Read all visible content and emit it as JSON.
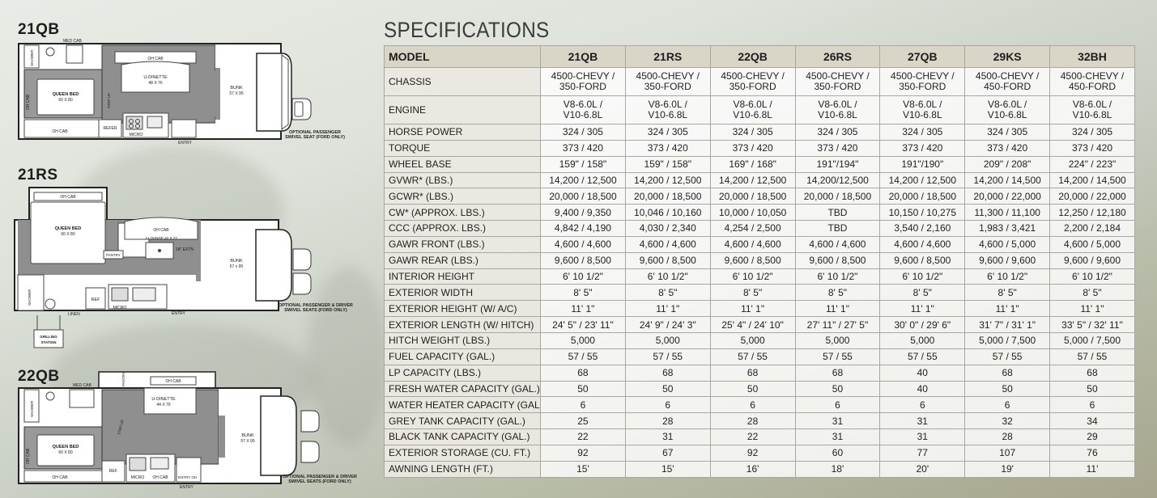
{
  "floorplans": [
    {
      "id": "21qb",
      "title": "21QB",
      "labels": {
        "med_cab": "MED CAB",
        "shower": "SHOWER",
        "oh_cab_top": "OH CAB",
        "u_dinette": "U-DINETTE",
        "dinette_size": "48 X 76",
        "step_up": "STEP UP",
        "queen_bed": "QUEEN BED",
        "bed_size": "60 X 80",
        "oh_cab_side": "OH CAB",
        "oh_cab_bottom": "OH CAB",
        "refer": "REFER",
        "micro": "MICRO",
        "entry": "ENTRY",
        "bunk": "BUNK",
        "bunk_size": "57 X 95"
      },
      "option_label": [
        "OPTIONAL PASSENGER",
        "SWIVEL SEAT (FORD ONLY)"
      ]
    },
    {
      "id": "21rs",
      "title": "21RS",
      "labels": {
        "oh_cab_top": "OH CAB",
        "queen_bed": "QUEEN BED",
        "bed_size": "60 X 80",
        "oh_cab_slide": "OH CAB",
        "j_lounge": "J-LOUNGE 42 X 77",
        "extn": "18\" EXTN",
        "pantry": "PANTRY",
        "shower": "SHOWER",
        "ref": "REF",
        "micro": "MICRO",
        "linen": "LINEN",
        "entry": "ENTRY",
        "bunk": "BUNK",
        "bunk_size": "57 x 95",
        "grilling": "GRILLING STATION"
      },
      "option_label": [
        "OPTIONAL PASSENGER & DRIVER",
        "SWIVEL SEATS (FORD ONLY)"
      ]
    },
    {
      "id": "22qb",
      "title": "22QB",
      "labels": {
        "med_cab": "MED CAB",
        "pantry": "PANTRY",
        "oh_cab_top": "OH CAB",
        "shower": "SHOWER",
        "u_dinette": "U-DINETTE",
        "dinette_size": "44 X 76",
        "step_up": "STEP UP",
        "queen_bed": "QUEEN BED",
        "bed_size": "60 X 80",
        "oh_cab_side": "OH CAB",
        "oh_cab_bottom": "OH CAB",
        "ref": "REF.",
        "micro": "MICRO",
        "oh_cab_kitchen": "OH CAB",
        "entry_oh": "ENTRY OH",
        "entry": "ENTRY",
        "bunk": "BUNK",
        "bunk_size": "57 X 95"
      },
      "option_label": [
        "OPTIONAL PASSENGER & DRIVER",
        "SWIVEL SEATS (FORD ONLY)"
      ]
    }
  ],
  "specifications": {
    "title": "SPECIFICATIONS",
    "header": [
      "MODEL",
      "21QB",
      "21RS",
      "22QB",
      "26RS",
      "27QB",
      "29KS",
      "32BH"
    ],
    "rows": [
      {
        "label": "CHASSIS",
        "tall": true,
        "values": [
          "4500-CHEVY / 350-FORD",
          "4500-CHEVY / 350-FORD",
          "4500-CHEVY / 350-FORD",
          "4500-CHEVY / 350-FORD",
          "4500-CHEVY / 350-FORD",
          "4500-CHEVY / 450-FORD",
          "4500-CHEVY / 450-FORD"
        ]
      },
      {
        "label": "ENGINE",
        "tall": true,
        "values": [
          "V8-6.0L / V10-6.8L",
          "V8-6.0L / V10-6.8L",
          "V8-6.0L / V10-6.8L",
          "V8-6.0L / V10-6.8L",
          "V8-6.0L / V10-6.8L",
          "V8-6.0L / V10-6.8L",
          "V8-6.0L / V10-6.8L"
        ]
      },
      {
        "label": "HORSE POWER",
        "values": [
          "324 / 305",
          "324 / 305",
          "324 / 305",
          "324 / 305",
          "324 / 305",
          "324 / 305",
          "324 / 305"
        ]
      },
      {
        "label": "TORQUE",
        "values": [
          "373 / 420",
          "373 / 420",
          "373 / 420",
          "373 / 420",
          "373 / 420",
          "373 / 420",
          "373 / 420"
        ]
      },
      {
        "label": "WHEEL BASE",
        "values": [
          "159\" / 158\"",
          "159\" / 158\"",
          "169\" / 168\"",
          "191\"/194\"",
          "191\"/190\"",
          "209\" / 208\"",
          "224\" / 223\""
        ]
      },
      {
        "label": "GVWR* (LBS.)",
        "values": [
          "14,200 / 12,500",
          "14,200 / 12,500",
          "14,200 / 12,500",
          "14,200/12,500",
          "14,200 / 12,500",
          "14,200 / 14,500",
          "14,200 / 14,500"
        ]
      },
      {
        "label": "GCWR* (LBS.)",
        "values": [
          "20,000 / 18,500",
          "20,000 / 18,500",
          "20,000 / 18,500",
          "20,000 / 18,500",
          "20,000 / 18,500",
          "20,000 / 22,000",
          "20,000 / 22,000"
        ]
      },
      {
        "label": "CW* (APPROX. LBS.)",
        "values": [
          "9,400 / 9,350",
          "10,046 / 10,160",
          "10,000 / 10,050",
          "TBD",
          "10,150 / 10,275",
          "11,300 / 11,100",
          "12,250 / 12,180"
        ]
      },
      {
        "label": "CCC (APPROX. LBS.)",
        "values": [
          "4,842 / 4,190",
          "4,030 / 2,340",
          "4,254 / 2,500",
          "TBD",
          "3,540 / 2,160",
          "1,983 / 3,421",
          "2,200 / 2,184"
        ]
      },
      {
        "label": "GAWR FRONT (LBS.)",
        "values": [
          "4,600 / 4,600",
          "4,600 / 4,600",
          "4,600 / 4,600",
          "4,600 / 4,600",
          "4,600 / 4,600",
          "4,600 / 5,000",
          "4,600 / 5,000"
        ]
      },
      {
        "label": "GAWR REAR (LBS.)",
        "values": [
          "9,600 / 8,500",
          "9,600 / 8,500",
          "9,600 / 8,500",
          "9,600 / 8,500",
          "9,600 / 8,500",
          "9,600 / 9,600",
          "9,600 / 9,600"
        ]
      },
      {
        "label": "INTERIOR HEIGHT",
        "values": [
          "6' 10 1/2\"",
          "6' 10 1/2\"",
          "6' 10 1/2\"",
          "6' 10 1/2\"",
          "6' 10 1/2\"",
          "6' 10 1/2\"",
          "6' 10 1/2\""
        ]
      },
      {
        "label": "EXTERIOR WIDTH",
        "values": [
          "8' 5\"",
          "8' 5\"",
          "8' 5\"",
          "8' 5\"",
          "8' 5\"",
          "8' 5\"",
          "8' 5\""
        ]
      },
      {
        "label": "EXTERIOR HEIGHT (W/ A/C)",
        "values": [
          "11' 1\"",
          "11' 1\"",
          "11' 1\"",
          "11' 1\"",
          "11' 1\"",
          "11' 1\"",
          "11' 1\""
        ]
      },
      {
        "label": "EXTERIOR LENGTH (W/ HITCH)",
        "values": [
          "24' 5\" / 23' 11\"",
          "24' 9\" / 24' 3\"",
          "25' 4\" / 24' 10\"",
          "27' 11\" / 27' 5\"",
          "30' 0\" / 29' 6\"",
          "31' 7\" / 31' 1\"",
          "33' 5\" / 32' 11\""
        ]
      },
      {
        "label": "HITCH WEIGHT (LBS.)",
        "values": [
          "5,000",
          "5,000",
          "5,000",
          "5,000",
          "5,000",
          "5,000 / 7,500",
          "5,000 / 7,500"
        ]
      },
      {
        "label": "FUEL CAPACITY (GAL.)",
        "values": [
          "57 / 55",
          "57 / 55",
          "57 / 55",
          "57 / 55",
          "57 / 55",
          "57 / 55",
          "57 / 55"
        ]
      },
      {
        "label": "LP CAPACITY (LBS.)",
        "values": [
          "68",
          "68",
          "68",
          "68",
          "40",
          "68",
          "68"
        ]
      },
      {
        "label": "FRESH WATER CAPACITY (GAL.)",
        "values": [
          "50",
          "50",
          "50",
          "50",
          "40",
          "50",
          "50"
        ]
      },
      {
        "label": "WATER HEATER CAPACITY (GAL.)",
        "values": [
          "6",
          "6",
          "6",
          "6",
          "6",
          "6",
          "6"
        ]
      },
      {
        "label": "GREY TANK CAPACITY (GAL.)",
        "values": [
          "25",
          "28",
          "28",
          "31",
          "31",
          "32",
          "34"
        ]
      },
      {
        "label": "BLACK TANK CAPACITY (GAL.)",
        "values": [
          "22",
          "31",
          "22",
          "31",
          "31",
          "28",
          "29"
        ]
      },
      {
        "label": "EXTERIOR STORAGE (CU. FT.)",
        "values": [
          "92",
          "67",
          "92",
          "60",
          "77",
          "107",
          "76"
        ]
      },
      {
        "label": "AWNING LENGTH (FT.)",
        "values": [
          "15'",
          "15'",
          "16'",
          "18'",
          "20'",
          "19'",
          "11'"
        ]
      }
    ]
  }
}
